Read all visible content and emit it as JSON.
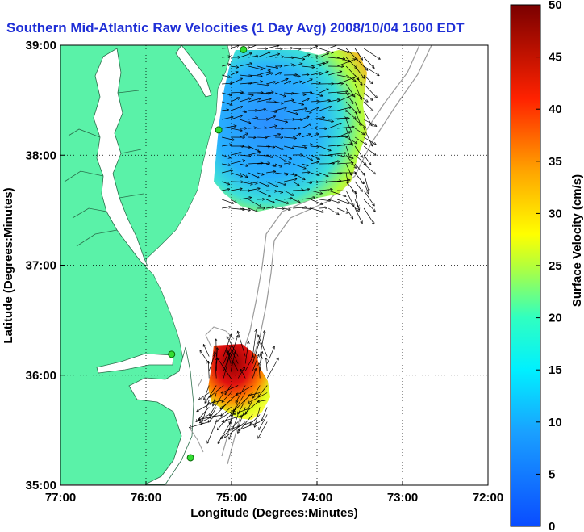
{
  "title": "Southern Mid-Atlantic Raw Velocities (1 Day Avg) 2008/10/04 1600 EDT",
  "map": {
    "xlabel": "Longitude (Degrees:Minutes)",
    "ylabel": "Latitude (Degrees:Minutes)",
    "lon_range": [
      -77,
      -72
    ],
    "lat_range": [
      35,
      39
    ],
    "x_ticks": [
      {
        "value": -77,
        "label": "77:00"
      },
      {
        "value": -76,
        "label": "76:00"
      },
      {
        "value": -75,
        "label": "75:00"
      },
      {
        "value": -74,
        "label": "74:00"
      },
      {
        "value": -73,
        "label": "73:00"
      },
      {
        "value": -72,
        "label": "72:00"
      }
    ],
    "y_ticks": [
      {
        "value": 35,
        "label": "35:00"
      },
      {
        "value": 36,
        "label": "36:00"
      },
      {
        "value": 37,
        "label": "37:00"
      },
      {
        "value": 38,
        "label": "38:00"
      },
      {
        "value": 39,
        "label": "39:00"
      }
    ],
    "grid": true,
    "land_color": "#5af2a8",
    "ocean_color": "#ffffff",
    "stations": [
      {
        "lon": -74.86,
        "lat": 38.96
      },
      {
        "lon": -75.15,
        "lat": 38.23
      },
      {
        "lon": -75.7,
        "lat": 36.19
      },
      {
        "lon": -75.48,
        "lat": 35.25
      }
    ]
  },
  "colorbar": {
    "label": "Surface Velocity (cm/s)",
    "range": [
      0,
      50
    ],
    "ticks": [
      "0",
      "5",
      "10",
      "15",
      "20",
      "25",
      "30",
      "35",
      "40",
      "45",
      "50"
    ]
  },
  "velocity_fields": [
    {
      "region": "north",
      "lon_range": [
        -75.15,
        -73.45
      ],
      "lat_range": [
        37.5,
        39.0
      ],
      "typical_speed_cm_s": [
        5,
        30
      ]
    },
    {
      "region": "south",
      "lon_range": [
        -75.3,
        -74.55
      ],
      "lat_range": [
        35.55,
        36.2
      ],
      "typical_speed_cm_s": [
        20,
        50
      ]
    }
  ]
}
